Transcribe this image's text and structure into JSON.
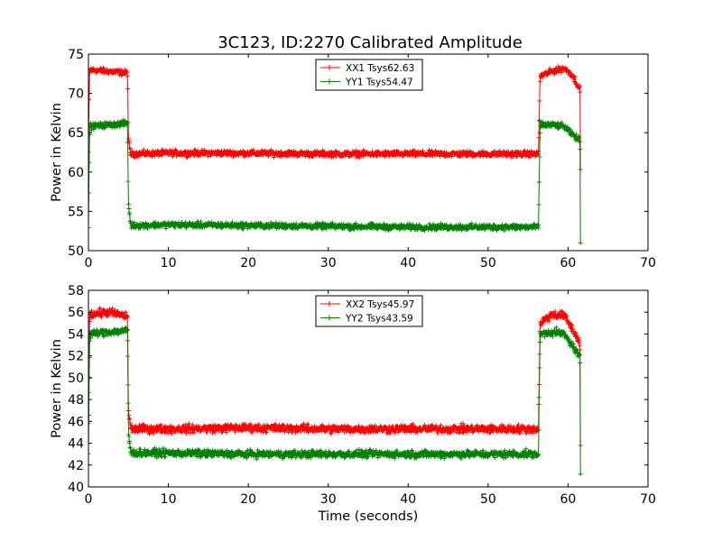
{
  "figure": {
    "title": "3C123, ID:2270 Calibrated Amplitude"
  },
  "colors": {
    "xx": "#ff0000",
    "yy": "#008000",
    "axes": "#000000",
    "background": "#ffffff"
  },
  "chart_data": [
    {
      "type": "line",
      "title": "3C123, ID:2270 Calibrated Amplitude",
      "xlabel": "",
      "ylabel": "Power in Kelvin",
      "xlim": [
        0,
        70
      ],
      "ylim": [
        50,
        75
      ],
      "xticks": [
        0,
        10,
        20,
        30,
        40,
        50,
        60,
        70
      ],
      "yticks": [
        50,
        55,
        60,
        65,
        70,
        75
      ],
      "legend_position": "upper-center",
      "marker": "+",
      "series": [
        {
          "name": "XX1 Tsys62.63",
          "color": "#ff0000",
          "noise": 0.45,
          "points": [
            [
              0,
              62.5
            ],
            [
              0.15,
              73.0
            ],
            [
              2.5,
              72.8
            ],
            [
              4.9,
              72.6
            ],
            [
              5.0,
              64.0
            ],
            [
              5.3,
              62.3
            ],
            [
              10,
              62.4
            ],
            [
              20,
              62.4
            ],
            [
              30,
              62.3
            ],
            [
              40,
              62.3
            ],
            [
              50,
              62.3
            ],
            [
              56.3,
              62.3
            ],
            [
              56.5,
              72.2
            ],
            [
              58,
              72.8
            ],
            [
              59.5,
              73.2
            ],
            [
              60.5,
              72.4
            ],
            [
              61.5,
              70.5
            ],
            [
              61.55,
              60.5
            ]
          ]
        },
        {
          "name": "YY1 Tsys54.47",
          "color": "#008000",
          "noise": 0.45,
          "points": [
            [
              0,
              53.0
            ],
            [
              0.15,
              65.8
            ],
            [
              2.5,
              66.0
            ],
            [
              4.9,
              66.2
            ],
            [
              5.0,
              56.0
            ],
            [
              5.3,
              53.2
            ],
            [
              10,
              53.3
            ],
            [
              20,
              53.2
            ],
            [
              30,
              53.1
            ],
            [
              40,
              53.0
            ],
            [
              50,
              53.0
            ],
            [
              56.3,
              53.0
            ],
            [
              56.5,
              66.0
            ],
            [
              58,
              66.0
            ],
            [
              59.5,
              65.8
            ],
            [
              60.5,
              64.8
            ],
            [
              61.5,
              64.0
            ],
            [
              61.55,
              51.3
            ]
          ]
        }
      ]
    },
    {
      "type": "line",
      "title": "",
      "xlabel": "Time (seconds)",
      "ylabel": "Power in Kelvin",
      "xlim": [
        0,
        70
      ],
      "ylim": [
        40,
        58
      ],
      "xticks": [
        0,
        10,
        20,
        30,
        40,
        50,
        60,
        70
      ],
      "yticks": [
        40,
        42,
        44,
        46,
        48,
        50,
        52,
        54,
        56,
        58
      ],
      "legend_position": "upper-center",
      "marker": "+",
      "series": [
        {
          "name": "XX2 Tsys45.97",
          "color": "#ff0000",
          "noise": 0.45,
          "points": [
            [
              0,
              45.5
            ],
            [
              0.15,
              55.8
            ],
            [
              2.5,
              56.0
            ],
            [
              4.9,
              55.6
            ],
            [
              5.0,
              47.0
            ],
            [
              5.3,
              45.3
            ],
            [
              10,
              45.3
            ],
            [
              20,
              45.4
            ],
            [
              30,
              45.3
            ],
            [
              40,
              45.3
            ],
            [
              50,
              45.3
            ],
            [
              56.3,
              45.3
            ],
            [
              56.5,
              55.0
            ],
            [
              58,
              55.8
            ],
            [
              59.5,
              55.7
            ],
            [
              60.5,
              54.5
            ],
            [
              61.5,
              53.2
            ],
            [
              61.55,
              43.5
            ]
          ]
        },
        {
          "name": "YY2 Tsys43.59",
          "color": "#008000",
          "noise": 0.4,
          "points": [
            [
              0,
              43.0
            ],
            [
              0.15,
              54.0
            ],
            [
              2.5,
              54.2
            ],
            [
              4.9,
              54.3
            ],
            [
              5.0,
              45.0
            ],
            [
              5.3,
              43.1
            ],
            [
              10,
              43.1
            ],
            [
              20,
              43.0
            ],
            [
              30,
              43.0
            ],
            [
              40,
              43.0
            ],
            [
              50,
              43.0
            ],
            [
              56.3,
              43.0
            ],
            [
              56.5,
              54.0
            ],
            [
              58,
              54.2
            ],
            [
              59.5,
              54.0
            ],
            [
              60.5,
              53.0
            ],
            [
              61.5,
              51.8
            ],
            [
              61.55,
              41.0
            ]
          ]
        }
      ]
    }
  ]
}
